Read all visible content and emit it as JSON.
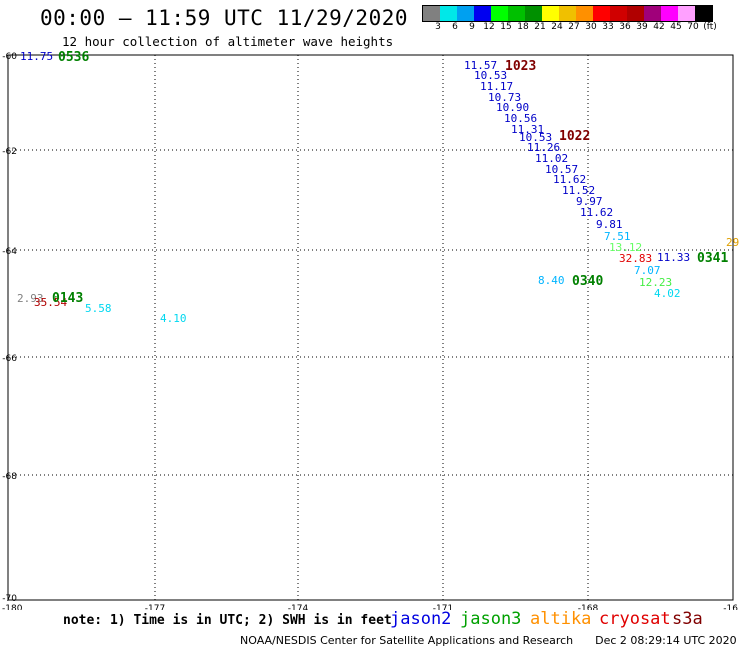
{
  "header": {
    "title": "00:00 – 11:59 UTC 11/29/2020",
    "subtitle": "12 hour collection of altimeter wave heights"
  },
  "colorbar": {
    "colors": [
      "#808080",
      "#00e8e8",
      "#00a0f0",
      "#0000f0",
      "#00ff00",
      "#00c000",
      "#009000",
      "#ffff00",
      "#f0c000",
      "#ff9000",
      "#ff0000",
      "#d00000",
      "#b00000",
      "#a0007a",
      "#ff00ff",
      "#ffa0ff",
      "#000000"
    ],
    "labels": [
      "3",
      "6",
      "9",
      "12",
      "15",
      "18",
      "21",
      "24",
      "27",
      "30",
      "33",
      "36",
      "39",
      "42",
      "45",
      "70",
      "(ft)"
    ]
  },
  "axes": {
    "lat_labels": [
      "-60",
      "-62",
      "-64",
      "-66",
      "-68",
      "-70"
    ],
    "lon_labels": [
      "-180",
      "-177",
      "-174",
      "-171",
      "-168",
      "-16"
    ]
  },
  "observations": [
    {
      "text": "11.75",
      "color": "#0000c8"
    },
    {
      "text": "0536",
      "color": "#008000",
      "bold": true
    },
    {
      "text": "11.57",
      "color": "#0000c8"
    },
    {
      "text": "1023",
      "color": "#800000",
      "bold": true
    },
    {
      "text": "10.53",
      "color": "#0000c8"
    },
    {
      "text": "11.17",
      "color": "#0000c8"
    },
    {
      "text": "10.73",
      "color": "#0000c8"
    },
    {
      "text": "10.90",
      "color": "#0000c8"
    },
    {
      "text": "10.56",
      "color": "#0000c8"
    },
    {
      "text": "11.31",
      "color": "#0000c8"
    },
    {
      "text": "10.53",
      "color": "#0000c8"
    },
    {
      "text": "1022",
      "color": "#800000",
      "bold": true
    },
    {
      "text": "11.26",
      "color": "#0000c8"
    },
    {
      "text": "11.02",
      "color": "#0000c8"
    },
    {
      "text": "10.57",
      "color": "#0000c8"
    },
    {
      "text": "11.62",
      "color": "#0000c8"
    },
    {
      "text": "11.52",
      "color": "#0000c8"
    },
    {
      "text": "9.97",
      "color": "#0000c8"
    },
    {
      "text": "11.62",
      "color": "#0000c8"
    },
    {
      "text": "9.81",
      "color": "#0000c8"
    },
    {
      "text": "7.51",
      "color": "#00b4ff"
    },
    {
      "text": "13.12",
      "color": "#66ff66"
    },
    {
      "text": "32.83",
      "color": "#e00000"
    },
    {
      "text": "11.33",
      "color": "#0000c8"
    },
    {
      "text": "0341",
      "color": "#008000",
      "bold": true
    },
    {
      "text": "29",
      "color": "#e0a000"
    },
    {
      "text": "7.07",
      "color": "#00b4ff"
    },
    {
      "text": "8.40",
      "color": "#00b4ff"
    },
    {
      "text": "0340",
      "color": "#008000",
      "bold": true
    },
    {
      "text": "12.23",
      "color": "#44ee44"
    },
    {
      "text": "4.02",
      "color": "#00d8f0"
    },
    {
      "text": "2.93",
      "color": "#808080"
    },
    {
      "text": "35.54",
      "color": "#b00000"
    },
    {
      "text": "0143",
      "color": "#008000",
      "bold": true
    },
    {
      "text": "5.58",
      "color": "#00d8f0"
    },
    {
      "text": "4.10",
      "color": "#00d8f0"
    }
  ],
  "footer": {
    "note": "note: 1) Time is in UTC; 2) SWH is in feet",
    "legend": [
      {
        "name": "jason2",
        "color": "#0000e0"
      },
      {
        "name": "jason3",
        "color": "#00a000"
      },
      {
        "name": "altika",
        "color": "#ff9000"
      },
      {
        "name": "cryosat",
        "color": "#e00000"
      },
      {
        "name": "s3a",
        "color": "#800000"
      }
    ],
    "credit": "NOAA/NESDIS Center for Satellite Applications and Research",
    "timestamp": "Dec  2 08:29:14 UTC 2020"
  }
}
